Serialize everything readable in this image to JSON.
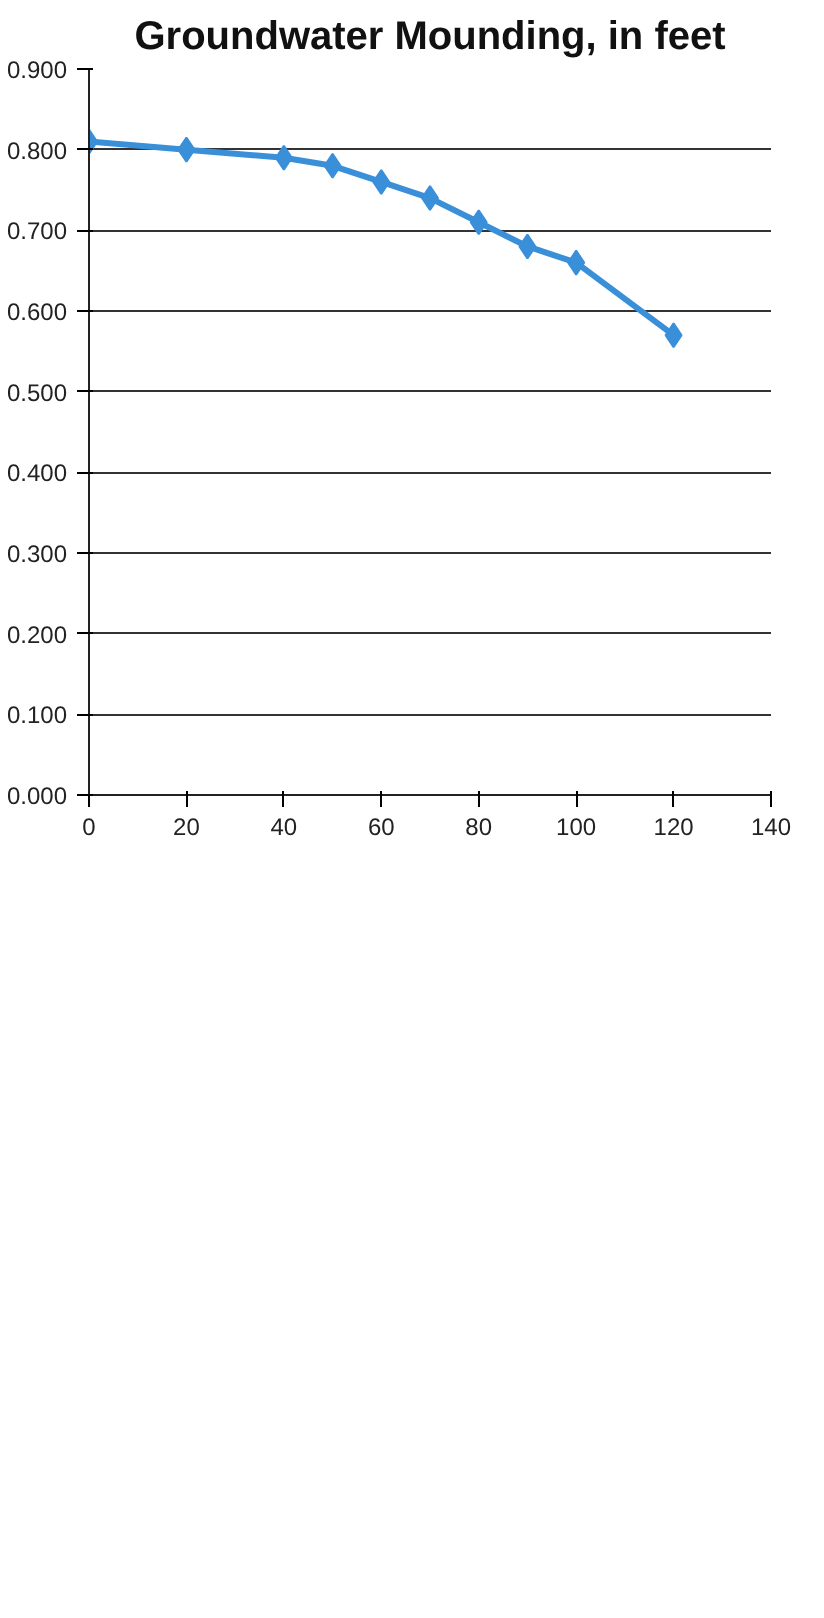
{
  "chart_data": {
    "type": "line",
    "title": "Groundwater Mounding, in feet",
    "x": [
      0,
      20,
      40,
      50,
      60,
      70,
      80,
      90,
      100,
      120
    ],
    "series": [
      {
        "color": "#3a8fd9",
        "values": [
          0.81,
          0.8,
          0.79,
          0.78,
          0.76,
          0.74,
          0.71,
          0.68,
          0.66,
          0.57
        ]
      }
    ],
    "xlim": [
      0,
      140
    ],
    "xticks": [
      0,
      20,
      40,
      60,
      80,
      100,
      120,
      140
    ],
    "ylim": [
      0,
      0.9
    ],
    "yticks": [
      {
        "value": 0,
        "label": "0.000"
      },
      {
        "value": 0.1,
        "label": "0.100"
      },
      {
        "value": 0.2,
        "label": "0.200"
      },
      {
        "value": 0.3,
        "label": "0.300"
      },
      {
        "value": 0.4,
        "label": "0.400"
      },
      {
        "value": 0.5,
        "label": "0.500"
      },
      {
        "value": 0.6,
        "label": "0.600"
      },
      {
        "value": 0.7,
        "label": "0.700"
      },
      {
        "value": 0.8,
        "label": "0.800"
      },
      {
        "value": 0.9,
        "label": "0.900"
      }
    ],
    "grid": "y",
    "marker": "diamond"
  }
}
